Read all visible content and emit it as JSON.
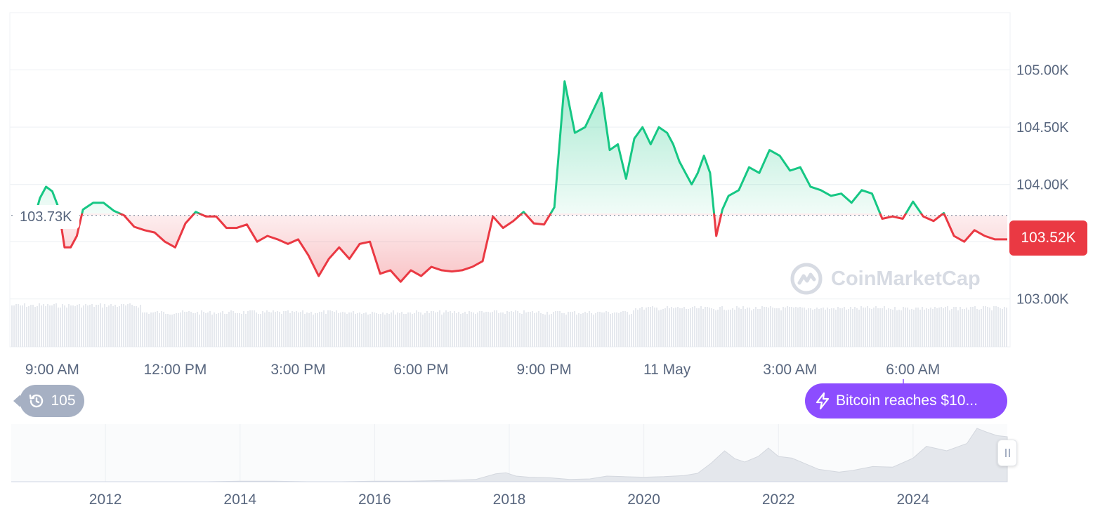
{
  "chart_data": [
    {
      "type": "area",
      "y_axis_ticks": [
        "105.00K",
        "104.50K",
        "104.00K",
        "103.00K"
      ],
      "x_axis_ticks": [
        "9:00 AM",
        "12:00 PM",
        "3:00 PM",
        "6:00 PM",
        "9:00 PM",
        "11 May",
        "3:00 AM",
        "6:00 AM"
      ],
      "ylim": [
        102.9,
        105.5
      ],
      "reference_value": 103.73,
      "reference_label": "103.73K",
      "current_value": 103.52,
      "current_label": "103.52K",
      "x": [
        8.6,
        8.7,
        8.85,
        9.0,
        9.15,
        9.3,
        9.45,
        9.6,
        9.75,
        10.0,
        10.25,
        10.5,
        10.75,
        11.0,
        11.25,
        11.5,
        11.75,
        12.0,
        12.25,
        12.5,
        12.75,
        13.0,
        13.25,
        13.5,
        13.75,
        14.0,
        14.25,
        14.5,
        14.75,
        15.0,
        15.25,
        15.5,
        15.75,
        16.0,
        16.25,
        16.5,
        16.75,
        17.0,
        17.25,
        17.5,
        17.75,
        18.0,
        18.25,
        18.5,
        18.75,
        19.0,
        19.25,
        19.5,
        19.75,
        20.0,
        20.25,
        20.5,
        20.75,
        21.0,
        21.25,
        21.5,
        21.75,
        22.0,
        22.2,
        22.4,
        22.6,
        22.8,
        23.0,
        23.2,
        23.4,
        23.6,
        23.8,
        24.0,
        24.15,
        24.3,
        24.45,
        24.6,
        24.75,
        24.9,
        25.05,
        25.2,
        25.35,
        25.5,
        25.75,
        26.0,
        26.25,
        26.5,
        26.75,
        27.0,
        27.25,
        27.5,
        27.75,
        28.0,
        28.25,
        28.5,
        28.75,
        29.0,
        29.25,
        29.5,
        29.75,
        30.0,
        30.25,
        30.5,
        30.75,
        31.0,
        31.25,
        31.5,
        31.75,
        32.0,
        32.3
      ],
      "y": [
        103.75,
        103.88,
        103.98,
        103.94,
        103.8,
        103.45,
        103.45,
        103.55,
        103.78,
        103.84,
        103.84,
        103.77,
        103.73,
        103.63,
        103.6,
        103.58,
        103.5,
        103.45,
        103.66,
        103.76,
        103.72,
        103.72,
        103.62,
        103.62,
        103.65,
        103.5,
        103.55,
        103.52,
        103.48,
        103.52,
        103.38,
        103.2,
        103.35,
        103.45,
        103.35,
        103.48,
        103.5,
        103.22,
        103.25,
        103.15,
        103.25,
        103.2,
        103.28,
        103.25,
        103.24,
        103.25,
        103.28,
        103.33,
        103.72,
        103.62,
        103.68,
        103.76,
        103.66,
        103.65,
        103.8,
        104.9,
        104.45,
        104.5,
        104.65,
        104.8,
        104.3,
        104.35,
        104.05,
        104.4,
        104.5,
        104.35,
        104.5,
        104.45,
        104.35,
        104.2,
        104.1,
        104.0,
        104.1,
        104.25,
        104.1,
        103.55,
        103.78,
        103.9,
        103.95,
        104.15,
        104.1,
        104.3,
        104.25,
        104.12,
        104.15,
        103.98,
        103.95,
        103.9,
        103.92,
        103.84,
        103.95,
        103.92,
        103.7,
        103.72,
        103.7,
        103.85,
        103.72,
        103.68,
        103.75,
        103.55,
        103.5,
        103.6,
        103.55,
        103.52,
        103.52
      ]
    },
    {
      "type": "area",
      "x_axis_ticks": [
        "2012",
        "2014",
        "2016",
        "2018",
        "2020",
        "2022",
        "2024"
      ],
      "x": [
        2010.6,
        2011.0,
        2011.5,
        2012.0,
        2012.5,
        2013.0,
        2013.5,
        2014.0,
        2014.5,
        2015.0,
        2015.5,
        2016.0,
        2016.5,
        2017.0,
        2017.5,
        2017.8,
        2017.95,
        2018.1,
        2018.3,
        2018.6,
        2018.9,
        2019.2,
        2019.45,
        2019.7,
        2020.0,
        2020.3,
        2020.6,
        2020.8,
        2021.0,
        2021.2,
        2021.35,
        2021.5,
        2021.7,
        2021.85,
        2022.0,
        2022.2,
        2022.4,
        2022.6,
        2022.9,
        2023.1,
        2023.4,
        2023.7,
        2024.0,
        2024.2,
        2024.5,
        2024.8,
        2024.95,
        2025.1,
        2025.25,
        2025.4
      ],
      "y": [
        0.0,
        0.0,
        0.0,
        0.0,
        0.0,
        0.0,
        0.0,
        0.01,
        0.01,
        0.0,
        0.0,
        0.01,
        0.01,
        0.02,
        0.04,
        0.14,
        0.16,
        0.1,
        0.08,
        0.07,
        0.04,
        0.05,
        0.1,
        0.09,
        0.08,
        0.09,
        0.11,
        0.15,
        0.33,
        0.55,
        0.41,
        0.35,
        0.45,
        0.6,
        0.45,
        0.42,
        0.32,
        0.22,
        0.17,
        0.2,
        0.27,
        0.26,
        0.42,
        0.63,
        0.55,
        0.68,
        0.95,
        0.88,
        0.82,
        0.8
      ]
    }
  ],
  "watermark": {
    "text": "CoinMarketCap"
  },
  "history_badge": {
    "icon": "history-icon",
    "count": "105"
  },
  "event_badge": {
    "icon": "lightning-icon",
    "text": "Bitcoin reaches $10..."
  },
  "colors": {
    "up": "#16c784",
    "down": "#ea3943",
    "event": "#8c4dff",
    "badge": "#a6b0c3"
  }
}
